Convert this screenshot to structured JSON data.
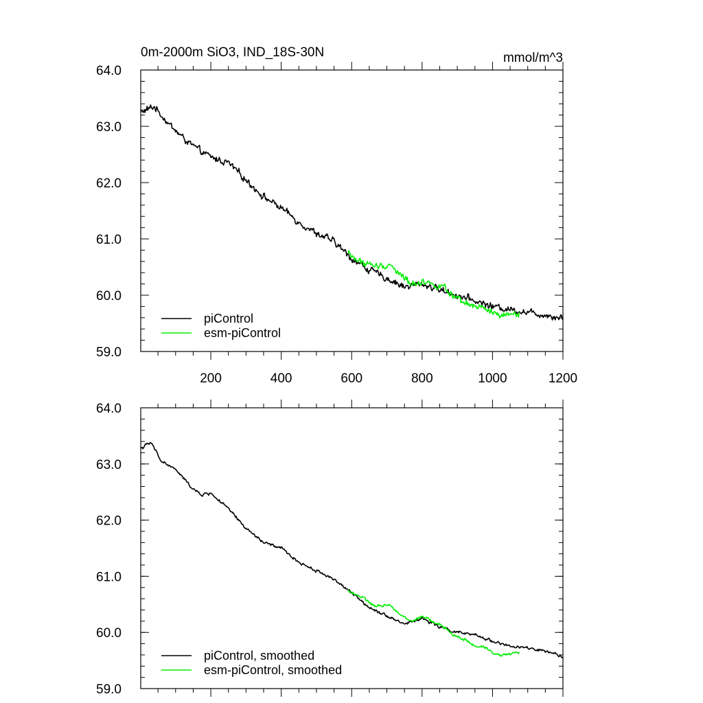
{
  "colors": {
    "picontrol": "#000000",
    "esm_picontrol": "#00ee00",
    "axis": "#000000"
  },
  "chart_data": [
    {
      "type": "line",
      "title": "0m-2000m SiO3, IND_18S-30N",
      "units": "mmol/m^3",
      "xlim": [
        1,
        1200
      ],
      "ylim": [
        59.0,
        64.0
      ],
      "xticks": [
        200,
        400,
        600,
        800,
        1000,
        1200
      ],
      "xtick_labels": [
        "200",
        "400",
        "600",
        "800",
        "1000",
        "1200"
      ],
      "yticks": [
        59.0,
        60.0,
        61.0,
        62.0,
        63.0,
        64.0
      ],
      "ytick_labels": [
        "59.0",
        "60.0",
        "61.0",
        "62.0",
        "63.0",
        "64.0"
      ],
      "legend_position": "bottom-left",
      "series": [
        {
          "name": "piControl",
          "key": "picontrol",
          "x": [
            1,
            40,
            80,
            120,
            160,
            200,
            250,
            300,
            350,
            400,
            450,
            500,
            550,
            600,
            650,
            700,
            750,
            800,
            850,
            900,
            950,
            1000,
            1050,
            1100,
            1150,
            1200
          ],
          "values": [
            63.25,
            63.35,
            63.05,
            62.8,
            62.6,
            62.45,
            62.35,
            62.05,
            61.75,
            61.55,
            61.3,
            61.1,
            60.95,
            60.65,
            60.45,
            60.3,
            60.15,
            60.2,
            60.1,
            60.0,
            59.9,
            59.8,
            59.75,
            59.7,
            59.65,
            59.6
          ],
          "noise": 0.09
        },
        {
          "name": "esm-piControl",
          "key": "esm_picontrol",
          "x": [
            590,
            620,
            650,
            680,
            710,
            740,
            770,
            800,
            830,
            860,
            890,
            920,
            950,
            980,
            1010,
            1040,
            1075
          ],
          "values": [
            60.75,
            60.6,
            60.55,
            60.5,
            60.55,
            60.35,
            60.2,
            60.25,
            60.2,
            60.15,
            59.95,
            59.85,
            59.8,
            59.75,
            59.65,
            59.62,
            59.7
          ],
          "noise": 0.09
        }
      ]
    },
    {
      "type": "line",
      "title": "",
      "units": "",
      "xlim": [
        1,
        1200
      ],
      "ylim": [
        59.0,
        64.0
      ],
      "xticks": [
        200,
        400,
        600,
        800,
        1000,
        1200
      ],
      "xtick_labels": [],
      "yticks": [
        59.0,
        60.0,
        61.0,
        62.0,
        63.0,
        64.0
      ],
      "ytick_labels": [
        "59.0",
        "60.0",
        "61.0",
        "62.0",
        "63.0",
        "64.0"
      ],
      "legend_position": "bottom-left",
      "series": [
        {
          "name": "piControl, smoothed",
          "key": "picontrol",
          "x": [
            1,
            30,
            60,
            100,
            140,
            170,
            200,
            250,
            300,
            350,
            400,
            450,
            500,
            550,
            600,
            650,
            700,
            750,
            800,
            850,
            900,
            950,
            1000,
            1050,
            1100,
            1150,
            1200
          ],
          "values": [
            63.28,
            63.38,
            63.05,
            62.9,
            62.62,
            62.45,
            62.48,
            62.2,
            61.85,
            61.6,
            61.5,
            61.25,
            61.1,
            60.95,
            60.7,
            60.45,
            60.3,
            60.15,
            60.25,
            60.1,
            60.0,
            59.95,
            59.85,
            59.75,
            59.72,
            59.66,
            59.56
          ],
          "noise": 0.04
        },
        {
          "name": "esm-piControl, smoothed",
          "key": "esm_picontrol",
          "x": [
            590,
            630,
            670,
            710,
            740,
            770,
            800,
            830,
            860,
            890,
            920,
            950,
            980,
            1010,
            1040,
            1075
          ],
          "values": [
            60.75,
            60.62,
            60.45,
            60.5,
            60.3,
            60.2,
            60.28,
            60.2,
            60.1,
            59.95,
            59.88,
            59.75,
            59.72,
            59.62,
            59.6,
            59.65
          ],
          "noise": 0.04
        }
      ]
    }
  ]
}
